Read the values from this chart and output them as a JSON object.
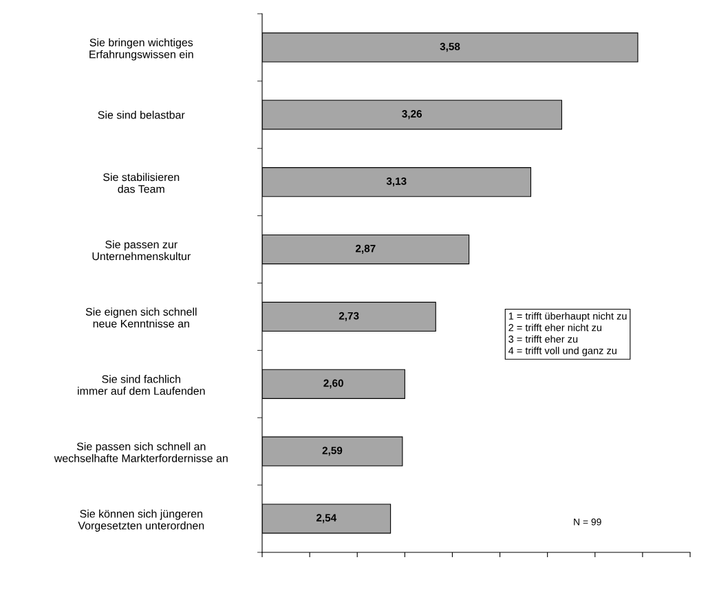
{
  "chart_data": {
    "type": "bar",
    "orientation": "horizontal",
    "categories": [
      "Sie bringen wichtiges\nErfahrungswissen ein",
      "Sie sind belastbar",
      "Sie stabilisieren\ndas Team",
      "Sie passen zur\nUnternehmenskultur",
      "Sie eignen sich schnell\nneue Kenntnisse an",
      "Sie sind fachlich\nimmer auf dem Laufenden",
      "Sie passen sich schnell an\nwechselhafte Markterfordernisse an",
      "Sie können sich jüngeren\nVorgesetzten unterordnen"
    ],
    "values": [
      3.58,
      3.26,
      3.13,
      2.87,
      2.73,
      2.6,
      2.59,
      2.54
    ],
    "value_labels": [
      "3,58",
      "3,26",
      "3,13",
      "2,87",
      "2,73",
      "2,60",
      "2,59",
      "2,54"
    ],
    "color": "#a6a6a6",
    "xlim": [
      2,
      3.8
    ],
    "xticks": [
      {
        "value": 2.0,
        "label": null
      },
      {
        "value": 2.2,
        "label": null
      },
      {
        "value": 2.4,
        "label": null
      },
      {
        "value": 2.6,
        "label": null
      },
      {
        "value": 2.8,
        "label": null
      },
      {
        "value": 3.0,
        "label": null
      },
      {
        "value": 3.2,
        "label": null
      },
      {
        "value": 3.4,
        "label": null
      },
      {
        "value": 3.6,
        "label": null
      },
      {
        "value": 3.8,
        "label": null
      }
    ],
    "tick_labels": "y",
    "grid": false,
    "annotations": [
      "1 = trifft überhaupt nicht zu\n2 = trifft eher nicht zu\n3 = trifft eher zu\n4 = trifft voll und ganz zu",
      "N = 99"
    ]
  }
}
